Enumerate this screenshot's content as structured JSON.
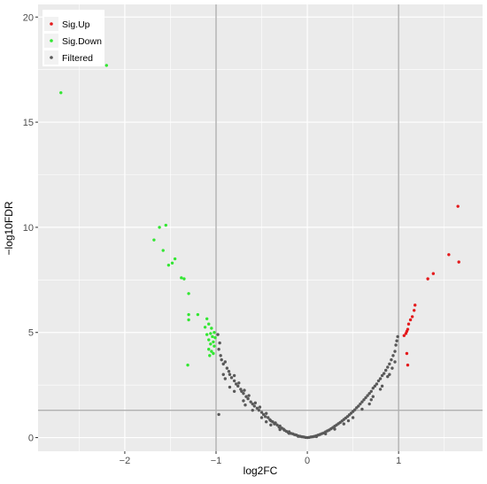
{
  "chart_data": {
    "type": "scatter",
    "title": "",
    "xlabel": "log2FC",
    "ylabel": "−log10FDR",
    "xlim": [
      -2.95,
      1.92
    ],
    "ylim": [
      -0.65,
      20.6
    ],
    "x_ticks": [
      -2,
      -1,
      0,
      1
    ],
    "x_tick_labels": [
      "−2",
      "−1",
      "0",
      "1"
    ],
    "y_ticks": [
      0,
      5,
      10,
      15,
      20
    ],
    "y_tick_labels": [
      "0",
      "5",
      "10",
      "15",
      "20"
    ],
    "grid": true,
    "legend_position": "top-left",
    "reference_lines": {
      "vertical": [
        -1,
        1
      ],
      "horizontal": [
        1.3
      ]
    },
    "colors": {
      "panel": "#ebebeb",
      "grid": "#ffffff",
      "reference": "#b0b0b0",
      "Sig.Up": "#e41a1c",
      "Sig.Down": "#33e633",
      "Filtered": "#595959"
    },
    "series": [
      {
        "name": "Sig.Up",
        "points": [
          [
            1.65,
            11.0
          ],
          [
            1.55,
            8.7
          ],
          [
            1.66,
            8.35
          ],
          [
            1.38,
            7.8
          ],
          [
            1.32,
            7.55
          ],
          [
            1.18,
            6.3
          ],
          [
            1.17,
            6.05
          ],
          [
            1.15,
            5.75
          ],
          [
            1.13,
            5.6
          ],
          [
            1.11,
            5.4
          ],
          [
            1.1,
            5.15
          ],
          [
            1.09,
            5.05
          ],
          [
            1.08,
            4.95
          ],
          [
            1.06,
            4.85
          ],
          [
            1.09,
            4.0
          ],
          [
            1.1,
            3.45
          ]
        ]
      },
      {
        "name": "Sig.Down",
        "points": [
          [
            -2.2,
            17.7
          ],
          [
            -2.7,
            16.4
          ],
          [
            -1.55,
            10.1
          ],
          [
            -1.62,
            10.0
          ],
          [
            -1.68,
            9.4
          ],
          [
            -1.58,
            8.9
          ],
          [
            -1.45,
            8.5
          ],
          [
            -1.48,
            8.3
          ],
          [
            -1.52,
            8.2
          ],
          [
            -1.38,
            7.6
          ],
          [
            -1.35,
            7.55
          ],
          [
            -1.3,
            6.85
          ],
          [
            -1.3,
            5.85
          ],
          [
            -1.2,
            5.85
          ],
          [
            -1.3,
            5.6
          ],
          [
            -1.1,
            5.65
          ],
          [
            -1.08,
            5.4
          ],
          [
            -1.12,
            5.25
          ],
          [
            -1.05,
            5.2
          ],
          [
            -1.02,
            5.0
          ],
          [
            -1.06,
            4.95
          ],
          [
            -1.1,
            4.9
          ],
          [
            -1.04,
            4.8
          ],
          [
            -1.01,
            4.75
          ],
          [
            -1.08,
            4.65
          ],
          [
            -1.03,
            4.55
          ],
          [
            -1.06,
            4.45
          ],
          [
            -1.02,
            4.35
          ],
          [
            -1.08,
            4.2
          ],
          [
            -1.05,
            4.1
          ],
          [
            -1.03,
            4.0
          ],
          [
            -1.07,
            3.9
          ],
          [
            -1.31,
            3.45
          ]
        ]
      },
      {
        "name": "Filtered",
        "points": [
          [
            -0.98,
            4.9
          ],
          [
            -0.96,
            4.5
          ],
          [
            -0.97,
            4.2
          ],
          [
            -0.95,
            3.9
          ],
          [
            -0.94,
            3.7
          ],
          [
            -0.92,
            3.5
          ],
          [
            -0.9,
            3.6
          ],
          [
            -0.88,
            3.3
          ],
          [
            -0.86,
            3.15
          ],
          [
            -0.85,
            3.0
          ],
          [
            -0.83,
            2.85
          ],
          [
            -0.8,
            2.95
          ],
          [
            -0.8,
            2.7
          ],
          [
            -0.78,
            2.55
          ],
          [
            -0.76,
            2.45
          ],
          [
            -0.75,
            2.6
          ],
          [
            -0.73,
            2.3
          ],
          [
            -0.72,
            2.2
          ],
          [
            -0.7,
            2.1
          ],
          [
            -0.69,
            2.25
          ],
          [
            -0.67,
            1.95
          ],
          [
            -0.65,
            1.85
          ],
          [
            -0.64,
            2.0
          ],
          [
            -0.62,
            1.7
          ],
          [
            -0.6,
            1.6
          ],
          [
            -0.58,
            1.5
          ],
          [
            -0.57,
            1.65
          ],
          [
            -0.55,
            1.4
          ],
          [
            -0.53,
            1.3
          ],
          [
            -0.52,
            1.45
          ],
          [
            -0.5,
            1.2
          ],
          [
            -0.48,
            1.1
          ],
          [
            -0.46,
            1.0
          ],
          [
            -0.45,
            1.15
          ],
          [
            -0.43,
            0.95
          ],
          [
            -0.41,
            0.85
          ],
          [
            -0.4,
            0.8
          ],
          [
            -0.38,
            0.75
          ],
          [
            -0.36,
            0.65
          ],
          [
            -0.35,
            0.7
          ],
          [
            -0.33,
            0.6
          ],
          [
            -0.31,
            0.5
          ],
          [
            -0.3,
            0.55
          ],
          [
            -0.28,
            0.45
          ],
          [
            -0.26,
            0.4
          ],
          [
            -0.25,
            0.35
          ],
          [
            -0.23,
            0.3
          ],
          [
            -0.21,
            0.25
          ],
          [
            -0.2,
            0.28
          ],
          [
            -0.18,
            0.2
          ],
          [
            -0.16,
            0.18
          ],
          [
            -0.14,
            0.14
          ],
          [
            -0.12,
            0.12
          ],
          [
            -0.1,
            0.08
          ],
          [
            -0.08,
            0.06
          ],
          [
            -0.06,
            0.04
          ],
          [
            -0.04,
            0.03
          ],
          [
            -0.02,
            0.01
          ],
          [
            0.0,
            0.0
          ],
          [
            0.02,
            0.01
          ],
          [
            0.04,
            0.03
          ],
          [
            0.06,
            0.04
          ],
          [
            0.08,
            0.06
          ],
          [
            0.1,
            0.09
          ],
          [
            0.12,
            0.12
          ],
          [
            0.14,
            0.15
          ],
          [
            0.16,
            0.19
          ],
          [
            0.18,
            0.22
          ],
          [
            0.2,
            0.27
          ],
          [
            0.22,
            0.32
          ],
          [
            0.24,
            0.36
          ],
          [
            0.26,
            0.42
          ],
          [
            0.28,
            0.48
          ],
          [
            0.3,
            0.54
          ],
          [
            0.32,
            0.6
          ],
          [
            0.34,
            0.66
          ],
          [
            0.36,
            0.72
          ],
          [
            0.38,
            0.79
          ],
          [
            0.4,
            0.86
          ],
          [
            0.42,
            0.93
          ],
          [
            0.44,
            1.0
          ],
          [
            0.46,
            1.08
          ],
          [
            0.48,
            1.16
          ],
          [
            0.5,
            1.24
          ],
          [
            0.52,
            1.32
          ],
          [
            0.54,
            1.42
          ],
          [
            0.56,
            1.5
          ],
          [
            0.58,
            1.6
          ],
          [
            0.6,
            1.7
          ],
          [
            0.62,
            1.8
          ],
          [
            0.64,
            1.9
          ],
          [
            0.66,
            2.0
          ],
          [
            0.68,
            2.1
          ],
          [
            0.7,
            2.2
          ],
          [
            0.72,
            2.35
          ],
          [
            0.74,
            2.45
          ],
          [
            0.76,
            2.55
          ],
          [
            0.78,
            2.7
          ],
          [
            0.8,
            2.8
          ],
          [
            0.82,
            2.95
          ],
          [
            0.84,
            3.05
          ],
          [
            0.86,
            3.2
          ],
          [
            0.88,
            3.35
          ],
          [
            0.9,
            3.5
          ],
          [
            0.92,
            3.7
          ],
          [
            0.94,
            3.9
          ],
          [
            0.96,
            4.1
          ],
          [
            0.97,
            4.4
          ],
          [
            0.98,
            4.6
          ],
          [
            0.99,
            4.8
          ],
          [
            -0.97,
            1.1
          ],
          [
            -0.9,
            2.8
          ],
          [
            -0.85,
            2.4
          ],
          [
            -0.8,
            2.2
          ],
          [
            -0.7,
            1.75
          ],
          [
            -0.6,
            1.3
          ],
          [
            -0.5,
            0.95
          ],
          [
            -0.4,
            0.6
          ],
          [
            -0.3,
            0.38
          ],
          [
            -0.2,
            0.2
          ],
          [
            -0.1,
            0.06
          ],
          [
            0.1,
            0.05
          ],
          [
            0.2,
            0.18
          ],
          [
            0.3,
            0.4
          ],
          [
            0.4,
            0.65
          ],
          [
            0.5,
            0.95
          ],
          [
            0.6,
            1.35
          ],
          [
            0.7,
            1.8
          ],
          [
            0.8,
            2.3
          ],
          [
            0.88,
            2.9
          ],
          [
            0.93,
            3.3
          ],
          [
            0.96,
            3.6
          ],
          [
            -0.92,
            3.0
          ],
          [
            -0.68,
            1.55
          ],
          [
            -0.45,
            0.75
          ],
          [
            0.45,
            0.8
          ],
          [
            0.68,
            1.6
          ],
          [
            0.82,
            2.45
          ],
          [
            0.9,
            3.0
          ],
          [
            0.72,
            1.95
          ]
        ]
      }
    ]
  }
}
